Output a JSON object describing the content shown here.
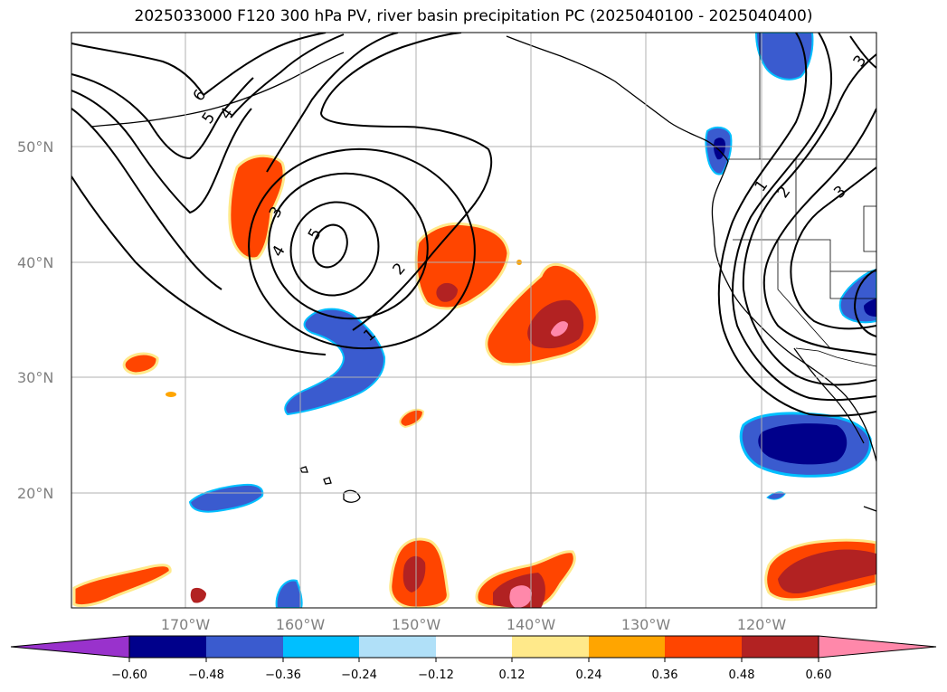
{
  "title": "2025033000 F120 300 hPa PV, river basin precipitation PC (2025040100 - 2025040400)",
  "map": {
    "lat_labels": [
      "50°N",
      "40°N",
      "30°N",
      "20°N"
    ],
    "lon_labels": [
      "170°W",
      "160°W",
      "150°W",
      "140°W",
      "130°W",
      "120°W"
    ],
    "pv_contour_labels": [
      "6",
      "5",
      "4",
      "3",
      "5",
      "4",
      "2",
      "1",
      "1",
      "2",
      "3",
      "3"
    ],
    "precipitation_pc_colors": {
      "strong_negative": "#00008b",
      "negative": "#3a5bcf",
      "weak_negative": "#00bfff",
      "neutral": "#ffffff",
      "weak_positive": "#ffe98a",
      "positive": "#ff4500",
      "strong_positive": "#b22222",
      "max_positive": "#ff88aa"
    }
  },
  "colorbar": {
    "ticks": [
      "−0.60",
      "−0.48",
      "−0.36",
      "−0.24",
      "−0.12",
      "0.12",
      "0.24",
      "0.36",
      "0.48",
      "0.60"
    ],
    "colors": [
      "#9932cc",
      "#00008b",
      "#3a5bcf",
      "#00bfff",
      "#b0e0f8",
      "#ffffff",
      "#ffe98a",
      "#ffa500",
      "#ff4500",
      "#b22222",
      "#ff88aa"
    ]
  }
}
